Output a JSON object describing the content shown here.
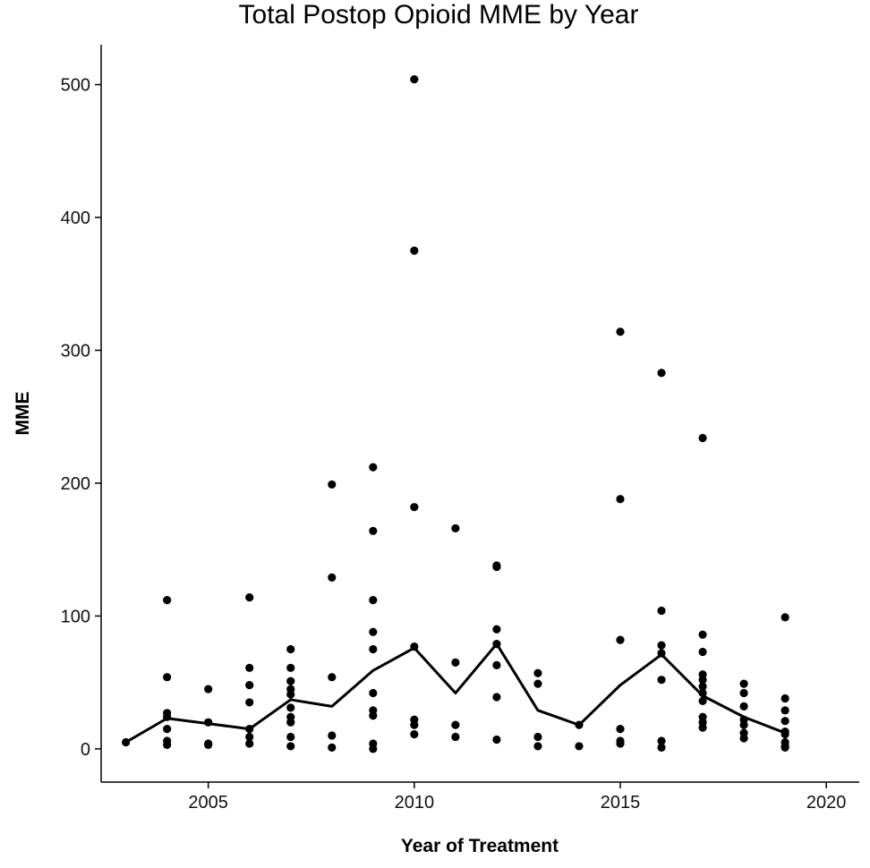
{
  "chart_data": {
    "type": "scatter",
    "title": "Total Postop Opioid MME by Year",
    "xlabel": "Year of Treatment",
    "ylabel": "MME",
    "xlim": [
      2002.4,
      2020.8
    ],
    "ylim": [
      -25,
      530
    ],
    "x_ticks": [
      2005,
      2010,
      2015,
      2020
    ],
    "y_ticks": [
      0,
      100,
      200,
      300,
      400,
      500
    ],
    "grid": false,
    "legend": "none",
    "series": [
      {
        "kind": "points",
        "color": "#000000",
        "points": [
          {
            "x": 2003,
            "y": 5
          },
          {
            "x": 2004,
            "y": 112
          },
          {
            "x": 2004,
            "y": 54
          },
          {
            "x": 2004,
            "y": 27
          },
          {
            "x": 2004,
            "y": 24
          },
          {
            "x": 2004,
            "y": 15
          },
          {
            "x": 2004,
            "y": 6
          },
          {
            "x": 2004,
            "y": 3
          },
          {
            "x": 2005,
            "y": 45
          },
          {
            "x": 2005,
            "y": 20
          },
          {
            "x": 2005,
            "y": 4
          },
          {
            "x": 2005,
            "y": 3
          },
          {
            "x": 2006,
            "y": 114
          },
          {
            "x": 2006,
            "y": 61
          },
          {
            "x": 2006,
            "y": 48
          },
          {
            "x": 2006,
            "y": 35
          },
          {
            "x": 2006,
            "y": 15
          },
          {
            "x": 2006,
            "y": 9
          },
          {
            "x": 2006,
            "y": 4
          },
          {
            "x": 2007,
            "y": 75
          },
          {
            "x": 2007,
            "y": 61
          },
          {
            "x": 2007,
            "y": 51
          },
          {
            "x": 2007,
            "y": 45
          },
          {
            "x": 2007,
            "y": 41
          },
          {
            "x": 2007,
            "y": 31
          },
          {
            "x": 2007,
            "y": 24
          },
          {
            "x": 2007,
            "y": 20
          },
          {
            "x": 2007,
            "y": 9
          },
          {
            "x": 2007,
            "y": 2
          },
          {
            "x": 2008,
            "y": 199
          },
          {
            "x": 2008,
            "y": 129
          },
          {
            "x": 2008,
            "y": 54
          },
          {
            "x": 2008,
            "y": 10
          },
          {
            "x": 2008,
            "y": 1
          },
          {
            "x": 2009,
            "y": 212
          },
          {
            "x": 2009,
            "y": 164
          },
          {
            "x": 2009,
            "y": 112
          },
          {
            "x": 2009,
            "y": 88
          },
          {
            "x": 2009,
            "y": 75
          },
          {
            "x": 2009,
            "y": 42
          },
          {
            "x": 2009,
            "y": 29
          },
          {
            "x": 2009,
            "y": 25
          },
          {
            "x": 2009,
            "y": 4
          },
          {
            "x": 2009,
            "y": 0
          },
          {
            "x": 2010,
            "y": 504
          },
          {
            "x": 2010,
            "y": 375
          },
          {
            "x": 2010,
            "y": 182
          },
          {
            "x": 2010,
            "y": 77
          },
          {
            "x": 2010,
            "y": 22
          },
          {
            "x": 2010,
            "y": 18
          },
          {
            "x": 2010,
            "y": 11
          },
          {
            "x": 2011,
            "y": 166
          },
          {
            "x": 2011,
            "y": 65
          },
          {
            "x": 2011,
            "y": 18
          },
          {
            "x": 2011,
            "y": 9
          },
          {
            "x": 2012,
            "y": 138
          },
          {
            "x": 2012,
            "y": 137
          },
          {
            "x": 2012,
            "y": 90
          },
          {
            "x": 2012,
            "y": 79
          },
          {
            "x": 2012,
            "y": 63
          },
          {
            "x": 2012,
            "y": 39
          },
          {
            "x": 2012,
            "y": 7
          },
          {
            "x": 2013,
            "y": 57
          },
          {
            "x": 2013,
            "y": 49
          },
          {
            "x": 2013,
            "y": 9
          },
          {
            "x": 2013,
            "y": 2
          },
          {
            "x": 2014,
            "y": 18
          },
          {
            "x": 2014,
            "y": 2
          },
          {
            "x": 2015,
            "y": 314
          },
          {
            "x": 2015,
            "y": 188
          },
          {
            "x": 2015,
            "y": 82
          },
          {
            "x": 2015,
            "y": 15
          },
          {
            "x": 2015,
            "y": 6
          },
          {
            "x": 2015,
            "y": 4
          },
          {
            "x": 2016,
            "y": 283
          },
          {
            "x": 2016,
            "y": 104
          },
          {
            "x": 2016,
            "y": 78
          },
          {
            "x": 2016,
            "y": 72
          },
          {
            "x": 2016,
            "y": 52
          },
          {
            "x": 2016,
            "y": 6
          },
          {
            "x": 2016,
            "y": 1
          },
          {
            "x": 2017,
            "y": 234
          },
          {
            "x": 2017,
            "y": 86
          },
          {
            "x": 2017,
            "y": 73
          },
          {
            "x": 2017,
            "y": 56
          },
          {
            "x": 2017,
            "y": 52
          },
          {
            "x": 2017,
            "y": 47
          },
          {
            "x": 2017,
            "y": 42
          },
          {
            "x": 2017,
            "y": 36
          },
          {
            "x": 2017,
            "y": 24
          },
          {
            "x": 2017,
            "y": 20
          },
          {
            "x": 2017,
            "y": 16
          },
          {
            "x": 2018,
            "y": 49
          },
          {
            "x": 2018,
            "y": 42
          },
          {
            "x": 2018,
            "y": 32
          },
          {
            "x": 2018,
            "y": 22
          },
          {
            "x": 2018,
            "y": 18
          },
          {
            "x": 2018,
            "y": 12
          },
          {
            "x": 2018,
            "y": 8
          },
          {
            "x": 2019,
            "y": 99
          },
          {
            "x": 2019,
            "y": 38
          },
          {
            "x": 2019,
            "y": 29
          },
          {
            "x": 2019,
            "y": 21
          },
          {
            "x": 2019,
            "y": 13
          },
          {
            "x": 2019,
            "y": 11
          },
          {
            "x": 2019,
            "y": 5
          },
          {
            "x": 2019,
            "y": 2
          },
          {
            "x": 2019,
            "y": 1
          }
        ]
      },
      {
        "kind": "line",
        "color": "#000000",
        "x": [
          2003,
          2004,
          2005,
          2006,
          2007,
          2008,
          2009,
          2010,
          2011,
          2012,
          2013,
          2014,
          2015,
          2016,
          2017,
          2018,
          2019
        ],
        "y": [
          5,
          23,
          19,
          15,
          37,
          32,
          59,
          76,
          42,
          79,
          29,
          18,
          48,
          71,
          40,
          24,
          12
        ]
      }
    ]
  }
}
